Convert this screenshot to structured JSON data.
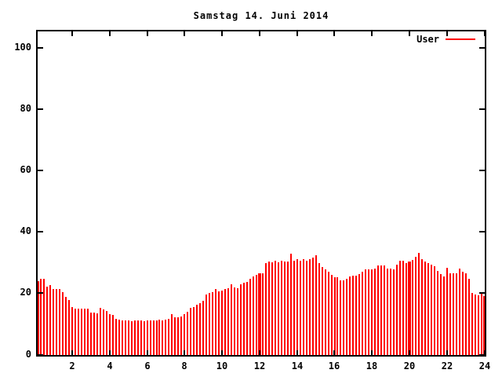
{
  "window": {
    "background": "#ffffff"
  },
  "chart_data": {
    "type": "bar",
    "title": "Samstag 14. Juni 2014",
    "series_name": "User",
    "color": "#ff0000",
    "text_color": "#000000",
    "grid": false,
    "legend_position": "top-right",
    "xlabel": "",
    "ylabel": "",
    "xlim": [
      0,
      24
    ],
    "ylim": [
      0,
      105
    ],
    "x_ticks": [
      2,
      4,
      6,
      8,
      10,
      12,
      14,
      16,
      18,
      20,
      22,
      24
    ],
    "y_ticks": [
      0,
      20,
      40,
      60,
      80,
      100
    ],
    "x_unit": "hour-of-day",
    "x_start_hours": 0.1667,
    "x_step_hours": 0.1667,
    "double_sample_indices": [
      71,
      119
    ],
    "values": [
      23.9,
      24.6,
      24.6,
      22.2,
      22.6,
      21.5,
      21.3,
      21.5,
      20.5,
      18.8,
      17.9,
      15.5,
      14.9,
      14.9,
      14.9,
      14.9,
      14.9,
      13.7,
      13.7,
      13.4,
      15.3,
      14.8,
      14.2,
      13.2,
      13.0,
      11.7,
      11.4,
      11.2,
      11.1,
      11.1,
      11.0,
      11.1,
      11.2,
      11.1,
      11.0,
      11.1,
      11.2,
      11.3,
      11.2,
      11.4,
      11.3,
      11.5,
      11.6,
      13.2,
      12.1,
      12.2,
      12.4,
      13.3,
      14.1,
      15.3,
      15.6,
      16.2,
      16.8,
      17.5,
      19.6,
      20.0,
      20.3,
      21.5,
      20.6,
      21.0,
      21.3,
      21.6,
      23.0,
      21.8,
      21.7,
      22.9,
      23.4,
      23.6,
      24.6,
      25.6,
      26.0,
      26.4,
      26.5,
      29.8,
      30.3,
      30.0,
      30.7,
      30.1,
      30.7,
      30.4,
      30.3,
      33.0,
      30.7,
      31.1,
      30.7,
      31.0,
      30.7,
      31.1,
      31.6,
      32.4,
      29.9,
      28.6,
      27.7,
      26.9,
      26.0,
      25.3,
      25.2,
      24.3,
      24.2,
      24.7,
      25.6,
      25.8,
      25.8,
      26.3,
      26.9,
      27.7,
      27.8,
      27.8,
      28.1,
      29.0,
      29.0,
      29.0,
      28.1,
      28.1,
      27.8,
      29.4,
      30.5,
      30.7,
      29.9,
      30.3,
      30.8,
      31.9,
      33.2,
      31.1,
      30.3,
      29.9,
      29.4,
      28.7,
      27.3,
      26.2,
      25.6,
      28.3,
      26.4,
      26.4,
      26.4,
      28.1,
      26.9,
      26.4,
      24.7,
      20.0,
      19.6,
      19.4,
      19.9,
      19.2
    ]
  }
}
